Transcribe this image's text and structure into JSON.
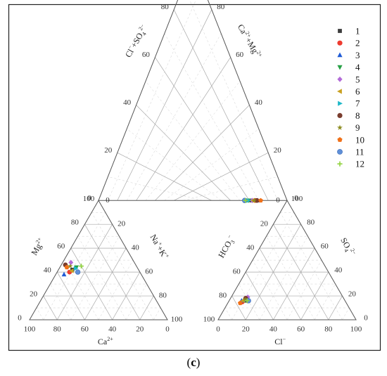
{
  "caption": {
    "open": "(",
    "letter": "c",
    "close": ")"
  },
  "chart_data": {
    "type": "scatter",
    "subtype": "piper-diagram",
    "title": "",
    "grid": true,
    "legend": "top-right",
    "axis_labels": {
      "cation_bottom": {
        "base": "Ca",
        "sup": "2+"
      },
      "cation_left": {
        "base": "Mg",
        "sup": "2+"
      },
      "cation_right": {
        "base": "Na",
        "sup": "+",
        "rest": "+K",
        "rest_sup": "+"
      },
      "anion_bottom": {
        "base": "Cl",
        "sup": "−"
      },
      "anion_left": {
        "base": "HCO",
        "sub": "3",
        "sup": "−"
      },
      "anion_right": {
        "base": "SO",
        "sub": "4",
        "sup": "2−"
      },
      "diamond_left": {
        "base": "Cl",
        "sup": "−",
        "rest": "+SO",
        "rest_sub": "4",
        "rest_sup": "2−"
      },
      "diamond_right": {
        "base": "Ca",
        "sup": "2+",
        "rest": "+Mg",
        "rest_sup": "2+"
      }
    },
    "ticks": [
      "0",
      "20",
      "40",
      "60",
      "80",
      "100"
    ],
    "series": [
      {
        "name": "1",
        "color": "#3c3c3c",
        "marker": "square",
        "cation": {
          "Ca": 48,
          "Mg": 42,
          "NaK": 10
        },
        "anion": {
          "Cl": 12,
          "HCO3": 72,
          "SO4": 16
        }
      },
      {
        "name": "2",
        "color": "#ee3b2f",
        "marker": "circle",
        "cation": {
          "Ca": 51,
          "Mg": 40,
          "NaK": 9
        },
        "anion": {
          "Cl": 10,
          "HCO3": 75,
          "SO4": 15
        }
      },
      {
        "name": "3",
        "color": "#1f5bd6",
        "marker": "triangle-up",
        "cation": {
          "Ca": 56,
          "Mg": 38,
          "NaK": 6
        },
        "anion": {
          "Cl": 9,
          "HCO3": 75,
          "SO4": 16
        }
      },
      {
        "name": "4",
        "color": "#27a046",
        "marker": "triangle-down",
        "cation": {
          "Ca": 44,
          "Mg": 44,
          "NaK": 12
        },
        "anion": {
          "Cl": 13,
          "HCO3": 71,
          "SO4": 16
        }
      },
      {
        "name": "5",
        "color": "#b36bd8",
        "marker": "diamond",
        "cation": {
          "Ca": 46,
          "Mg": 48,
          "NaK": 6
        },
        "anion": {
          "Cl": 12,
          "HCO3": 69,
          "SO4": 19
        }
      },
      {
        "name": "6",
        "color": "#c9a020",
        "marker": "triangle-left",
        "cation": {
          "Ca": 49,
          "Mg": 41,
          "NaK": 10
        },
        "anion": {
          "Cl": 10,
          "HCO3": 74,
          "SO4": 16
        }
      },
      {
        "name": "7",
        "color": "#1fb8c8",
        "marker": "triangle-right",
        "cation": {
          "Ca": 45,
          "Mg": 43,
          "NaK": 12
        },
        "anion": {
          "Cl": 12,
          "HCO3": 71,
          "SO4": 17
        }
      },
      {
        "name": "8",
        "color": "#7a3d2e",
        "marker": "circle",
        "cation": {
          "Ca": 51,
          "Mg": 46,
          "NaK": 3
        },
        "anion": {
          "Cl": 11,
          "HCO3": 71,
          "SO4": 18
        }
      },
      {
        "name": "9",
        "color": "#8c8c1e",
        "marker": "star",
        "cation": {
          "Ca": 48,
          "Mg": 45,
          "NaK": 7
        },
        "anion": {
          "Cl": 11,
          "HCO3": 72,
          "SO4": 17
        }
      },
      {
        "name": "10",
        "color": "#f07018",
        "marker": "pentagon",
        "cation": {
          "Ca": 51,
          "Mg": 44,
          "NaK": 5
        },
        "anion": {
          "Cl": 9,
          "HCO3": 77,
          "SO4": 14
        }
      },
      {
        "name": "11",
        "color": "#5f8fd8",
        "marker": "ball",
        "cation": {
          "Ca": 45,
          "Mg": 40,
          "NaK": 15
        },
        "anion": {
          "Cl": 14,
          "HCO3": 70,
          "SO4": 16
        }
      },
      {
        "name": "12",
        "color": "#8fd23c",
        "marker": "plus",
        "cation": {
          "Ca": 40,
          "Mg": 45,
          "NaK": 15
        },
        "anion": {
          "Cl": 13,
          "HCO3": 71,
          "SO4": 16
        }
      }
    ]
  }
}
